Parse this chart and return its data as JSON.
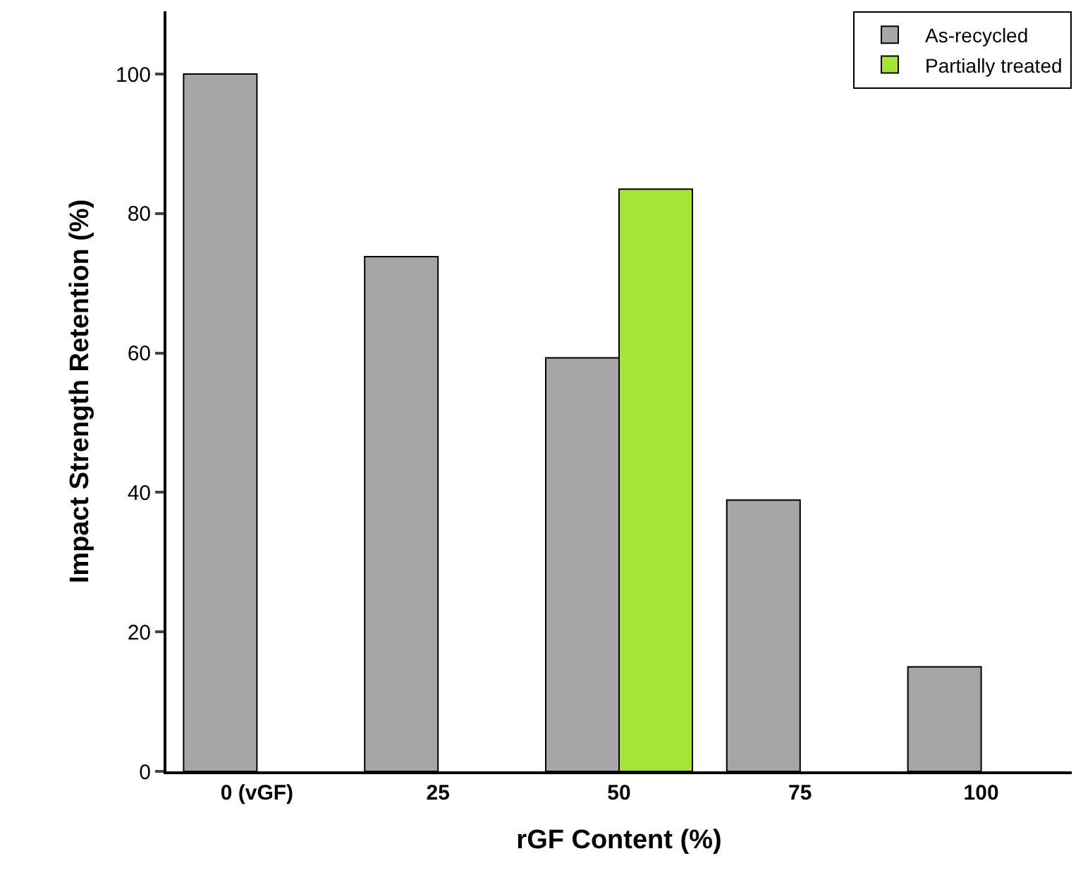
{
  "chart_data": {
    "type": "bar",
    "xlabel": "rGF Content (%)",
    "ylabel": "Impact Strength Retention (%)",
    "categories": [
      "0 (vGF)",
      "25",
      "50",
      "75",
      "100"
    ],
    "series": [
      {
        "name": "As-recycled",
        "color": "#a6a6a6",
        "values": [
          100,
          73.8,
          59.3,
          38.9,
          15.0
        ]
      },
      {
        "name": "Partially treated",
        "color": "#a3e635",
        "values": [
          null,
          null,
          83.5,
          null,
          null
        ]
      }
    ],
    "ylim": [
      0,
      109
    ],
    "yticks": [
      0,
      20,
      40,
      60,
      80,
      100
    ],
    "grid": false,
    "legend": "top right"
  }
}
